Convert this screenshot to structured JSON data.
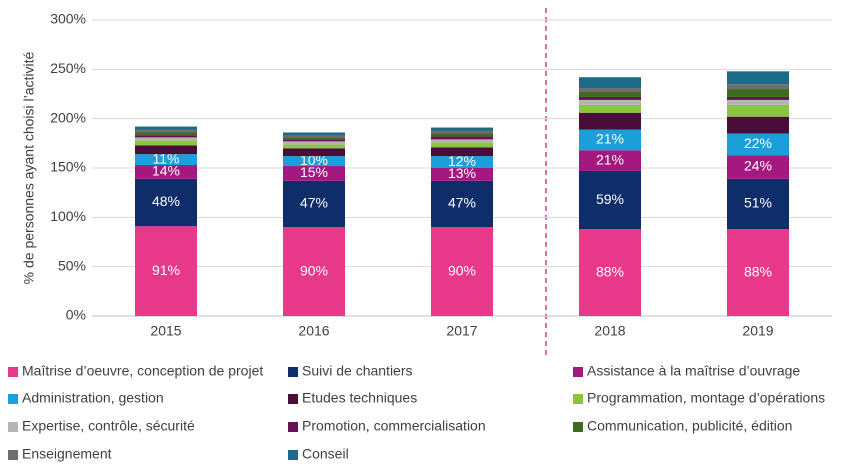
{
  "chart_data": {
    "type": "stacked_bar",
    "y_label": "% de personnes ayant choisi l’activité",
    "categories": [
      "2015",
      "2016",
      "2017",
      "2018",
      "2019"
    ],
    "ylim": [
      0,
      300
    ],
    "yticks": [
      {
        "value": 0,
        "label": "0%"
      },
      {
        "value": 50,
        "label": "50%"
      },
      {
        "value": 100,
        "label": "100%"
      },
      {
        "value": 150,
        "label": "150%"
      },
      {
        "value": 200,
        "label": "200%"
      },
      {
        "value": 250,
        "label": "250%"
      },
      {
        "value": 300,
        "label": "300%"
      }
    ],
    "grid": true,
    "series": [
      {
        "name": "Maîtrise d’oeuvre, conception de projet",
        "color": "#e8388a",
        "values": [
          91,
          90,
          90,
          88,
          88
        ],
        "value_labels": [
          "91%",
          "90%",
          "90%",
          "88%",
          "88%"
        ]
      },
      {
        "name": "Suivi de chantiers",
        "color": "#0f2d69",
        "values": [
          48,
          47,
          47,
          59,
          51
        ],
        "value_labels": [
          "48%",
          "47%",
          "47%",
          "59%",
          "51%"
        ]
      },
      {
        "name": "Assistance à la maîtrise d’ouvrage",
        "color": "#a3197f",
        "values": [
          14,
          15,
          13,
          21,
          24
        ],
        "value_labels": [
          "14%",
          "15%",
          "13%",
          "21%",
          "24%"
        ]
      },
      {
        "name": "Administration, gestion",
        "color": "#1a9fdb",
        "values": [
          11,
          10,
          12,
          21,
          22
        ],
        "value_labels": [
          "11%",
          "10%",
          "12%",
          "21%",
          "22%"
        ]
      },
      {
        "name": "Etudes techniques",
        "color": "#4a0d3a",
        "values": [
          9,
          8,
          9,
          17,
          17
        ]
      },
      {
        "name": "Programmation, montage d’opérations",
        "color": "#8bc540",
        "values": [
          5,
          4,
          5,
          8,
          12
        ]
      },
      {
        "name": "Expertise, contrôle, sécurité",
        "color": "#b5b5b5",
        "values": [
          3,
          3,
          3,
          5,
          5
        ]
      },
      {
        "name": "Promotion, commercialisation",
        "color": "#6a1155",
        "values": [
          2,
          2,
          3,
          3,
          3
        ]
      },
      {
        "name": "Communication, publicité, édition",
        "color": "#3e6b1f",
        "values": [
          3,
          2,
          3,
          5,
          8
        ]
      },
      {
        "name": "Enseignement",
        "color": "#6d6d6d",
        "values": [
          3,
          2,
          3,
          4,
          5
        ]
      },
      {
        "name": "Conseil",
        "color": "#1b6a8a",
        "values": [
          3,
          3,
          3,
          11,
          13
        ]
      }
    ]
  }
}
